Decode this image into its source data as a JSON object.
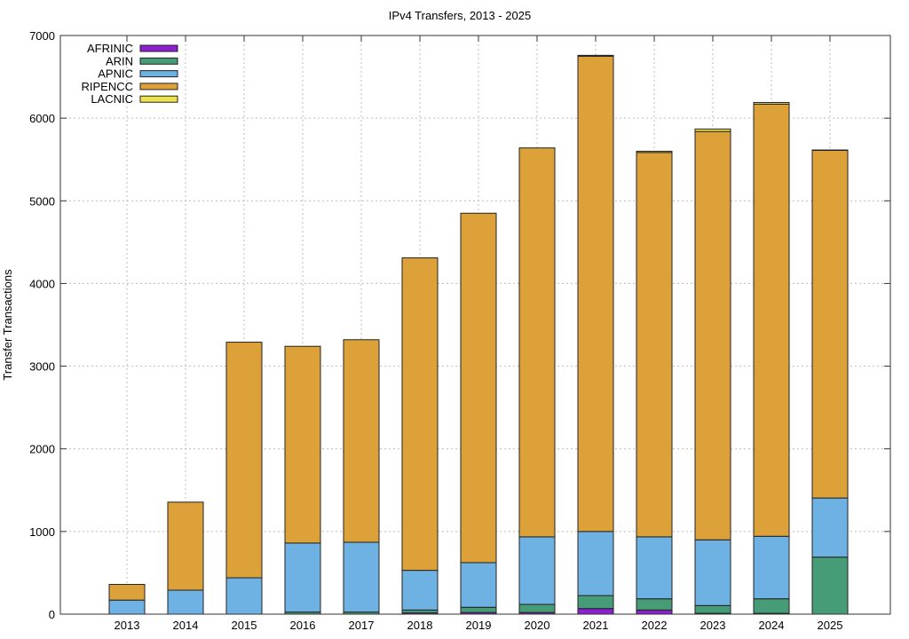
{
  "chart_data": {
    "type": "bar",
    "stacked": true,
    "title": "IPv4 Transfers, 2013 - 2025",
    "xlabel": "",
    "ylabel": "Transfer Transactions",
    "ylim": [
      0,
      7000
    ],
    "yticks": [
      0,
      1000,
      2000,
      3000,
      4000,
      5000,
      6000,
      7000
    ],
    "grid": true,
    "legend_position": "top-left",
    "categories": [
      "2013",
      "2014",
      "2015",
      "2016",
      "2017",
      "2018",
      "2019",
      "2020",
      "2021",
      "2022",
      "2023",
      "2024",
      "2025"
    ],
    "series": [
      {
        "name": "AFRINIC",
        "color": "#8c1fd0",
        "values": [
          0,
          0,
          0,
          0,
          0,
          15,
          20,
          20,
          68,
          50,
          10,
          10,
          0
        ]
      },
      {
        "name": "ARIN",
        "color": "#469c76",
        "values": [
          0,
          0,
          0,
          25,
          25,
          35,
          63,
          98,
          157,
          136,
          94,
          176,
          690
        ]
      },
      {
        "name": "APNIC",
        "color": "#6db2e3",
        "values": [
          170,
          290,
          440,
          835,
          845,
          480,
          540,
          817,
          775,
          749,
          795,
          756,
          715
        ]
      },
      {
        "name": "RIPENCC",
        "color": "#dca239",
        "values": [
          190,
          1065,
          2850,
          2380,
          2450,
          3780,
          4227,
          4705,
          5750,
          4650,
          4940,
          5228,
          4205
        ]
      },
      {
        "name": "LACNIC",
        "color": "#eee34a",
        "values": [
          0,
          0,
          0,
          0,
          0,
          0,
          0,
          0,
          10,
          15,
          30,
          20,
          5
        ]
      }
    ]
  }
}
